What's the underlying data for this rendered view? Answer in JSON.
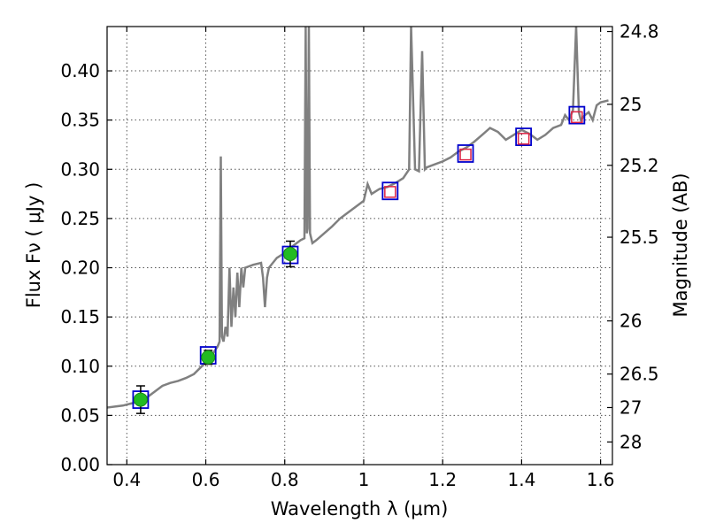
{
  "chart_data": {
    "type": "line",
    "title": "",
    "xlabel": "Wavelength  λ (μm)",
    "ylabel": "Flux  Fν  ( μJy )",
    "ylabel_right": "Magnitude (AB)",
    "xlim": [
      0.35,
      1.63
    ],
    "ylim": [
      0.0,
      0.445
    ],
    "grid": true,
    "x_ticks": [
      0.4,
      0.6,
      0.8,
      1.0,
      1.2,
      1.4,
      1.6
    ],
    "x_tick_labels": [
      "0.4",
      "0.6",
      "0.8",
      "1",
      "1.2",
      "1.4",
      "1.6"
    ],
    "y_ticks": [
      0.0,
      0.05,
      0.1,
      0.15,
      0.2,
      0.25,
      0.3,
      0.35,
      0.4
    ],
    "y_tick_labels": [
      "0.00",
      "0.05",
      "0.10",
      "0.15",
      "0.20",
      "0.25",
      "0.30",
      "0.35",
      "0.40"
    ],
    "right_axis_ticks": [
      {
        "label": "24.8",
        "flux": 0.44
      },
      {
        "label": "25",
        "flux": 0.366
      },
      {
        "label": "25.2",
        "flux": 0.304
      },
      {
        "label": "25.5",
        "flux": 0.231
      },
      {
        "label": "26",
        "flux": 0.146
      },
      {
        "label": "26.5",
        "flux": 0.092
      },
      {
        "label": "27",
        "flux": 0.058
      },
      {
        "label": "28",
        "flux": 0.023
      }
    ],
    "model_spectrum": {
      "color": "#808080",
      "points": [
        [
          0.35,
          0.058
        ],
        [
          0.37,
          0.059
        ],
        [
          0.39,
          0.06
        ],
        [
          0.41,
          0.062
        ],
        [
          0.43,
          0.064
        ],
        [
          0.45,
          0.068
        ],
        [
          0.47,
          0.074
        ],
        [
          0.49,
          0.08
        ],
        [
          0.51,
          0.083
        ],
        [
          0.53,
          0.085
        ],
        [
          0.55,
          0.088
        ],
        [
          0.57,
          0.092
        ],
        [
          0.59,
          0.1
        ],
        [
          0.6,
          0.106
        ],
        [
          0.61,
          0.11
        ],
        [
          0.62,
          0.114
        ],
        [
          0.63,
          0.12
        ],
        [
          0.635,
          0.125
        ],
        [
          0.638,
          0.313
        ],
        [
          0.641,
          0.13
        ],
        [
          0.645,
          0.125
        ],
        [
          0.65,
          0.14
        ],
        [
          0.655,
          0.13
        ],
        [
          0.66,
          0.2
        ],
        [
          0.665,
          0.14
        ],
        [
          0.67,
          0.18
        ],
        [
          0.675,
          0.15
        ],
        [
          0.68,
          0.195
        ],
        [
          0.685,
          0.16
        ],
        [
          0.69,
          0.2
        ],
        [
          0.695,
          0.18
        ],
        [
          0.7,
          0.2
        ],
        [
          0.72,
          0.203
        ],
        [
          0.74,
          0.205
        ],
        [
          0.745,
          0.19
        ],
        [
          0.75,
          0.16
        ],
        [
          0.755,
          0.19
        ],
        [
          0.76,
          0.2
        ],
        [
          0.78,
          0.21
        ],
        [
          0.8,
          0.215
        ],
        [
          0.82,
          0.222
        ],
        [
          0.84,
          0.228
        ],
        [
          0.85,
          0.23
        ],
        [
          0.853,
          0.445
        ],
        [
          0.856,
          0.235
        ],
        [
          0.858,
          0.24
        ],
        [
          0.861,
          0.445
        ],
        [
          0.864,
          0.235
        ],
        [
          0.87,
          0.225
        ],
        [
          0.88,
          0.228
        ],
        [
          0.9,
          0.235
        ],
        [
          0.92,
          0.242
        ],
        [
          0.94,
          0.25
        ],
        [
          0.96,
          0.256
        ],
        [
          0.98,
          0.262
        ],
        [
          1.0,
          0.268
        ],
        [
          1.01,
          0.285
        ],
        [
          1.02,
          0.275
        ],
        [
          1.04,
          0.28
        ],
        [
          1.06,
          0.282
        ],
        [
          1.08,
          0.286
        ],
        [
          1.1,
          0.291
        ],
        [
          1.115,
          0.3
        ],
        [
          1.12,
          0.445
        ],
        [
          1.13,
          0.3
        ],
        [
          1.14,
          0.298
        ],
        [
          1.148,
          0.42
        ],
        [
          1.155,
          0.3
        ],
        [
          1.16,
          0.302
        ],
        [
          1.18,
          0.305
        ],
        [
          1.2,
          0.308
        ],
        [
          1.22,
          0.312
        ],
        [
          1.24,
          0.318
        ],
        [
          1.26,
          0.322
        ],
        [
          1.28,
          0.328
        ],
        [
          1.3,
          0.335
        ],
        [
          1.32,
          0.342
        ],
        [
          1.34,
          0.338
        ],
        [
          1.36,
          0.33
        ],
        [
          1.38,
          0.335
        ],
        [
          1.4,
          0.34
        ],
        [
          1.42,
          0.336
        ],
        [
          1.44,
          0.33
        ],
        [
          1.46,
          0.335
        ],
        [
          1.48,
          0.342
        ],
        [
          1.5,
          0.345
        ],
        [
          1.51,
          0.355
        ],
        [
          1.52,
          0.35
        ],
        [
          1.53,
          0.36
        ],
        [
          1.538,
          0.445
        ],
        [
          1.545,
          0.358
        ],
        [
          1.55,
          0.35
        ],
        [
          1.56,
          0.355
        ],
        [
          1.57,
          0.358
        ],
        [
          1.58,
          0.35
        ],
        [
          1.59,
          0.365
        ],
        [
          1.6,
          0.368
        ],
        [
          1.62,
          0.37
        ]
      ]
    },
    "observed_points": {
      "color": "#22bb22",
      "points": [
        {
          "x": 0.435,
          "y": 0.066,
          "yerr": 0.014
        },
        {
          "x": 0.606,
          "y": 0.109,
          "yerr": 0.007
        },
        {
          "x": 0.814,
          "y": 0.214,
          "yerr": 0.013
        }
      ]
    },
    "model_photometry": {
      "color": "#0000cc",
      "points": [
        {
          "x": 0.435,
          "y": 0.066
        },
        {
          "x": 0.606,
          "y": 0.111
        },
        {
          "x": 0.814,
          "y": 0.213
        },
        {
          "x": 1.067,
          "y": 0.278
        },
        {
          "x": 1.258,
          "y": 0.316
        },
        {
          "x": 1.405,
          "y": 0.333
        },
        {
          "x": 1.54,
          "y": 0.355
        }
      ]
    },
    "upper_points": {
      "color": "#dd2244",
      "points": [
        {
          "x": 1.067,
          "y": 0.277
        },
        {
          "x": 1.258,
          "y": 0.315
        },
        {
          "x": 1.405,
          "y": 0.331
        },
        {
          "x": 1.54,
          "y": 0.353
        }
      ]
    }
  }
}
